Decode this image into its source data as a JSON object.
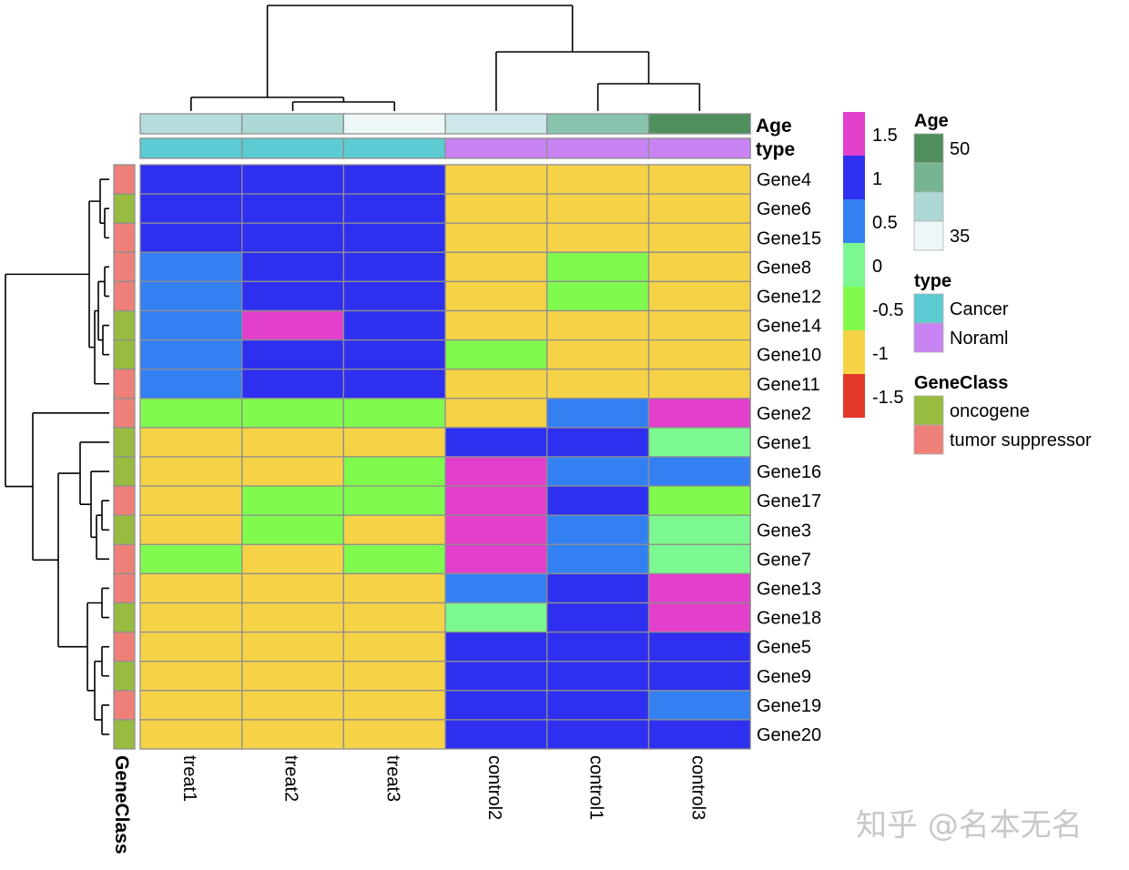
{
  "chart_data": {
    "type": "heatmap",
    "columns": [
      "treat1",
      "treat2",
      "treat3",
      "control2",
      "control1",
      "control3"
    ],
    "rows": [
      "Gene4",
      "Gene6",
      "Gene15",
      "Gene8",
      "Gene12",
      "Gene14",
      "Gene10",
      "Gene11",
      "Gene2",
      "Gene1",
      "Gene16",
      "Gene17",
      "Gene3",
      "Gene7",
      "Gene13",
      "Gene18",
      "Gene5",
      "Gene9",
      "Gene19",
      "Gene20"
    ],
    "values": [
      [
        1,
        1,
        1,
        -1,
        -1,
        -1
      ],
      [
        1,
        1,
        1,
        -1,
        -1,
        -1
      ],
      [
        1,
        1,
        1,
        -1,
        -1,
        -1
      ],
      [
        0.5,
        1,
        1,
        -1,
        -0.5,
        -1
      ],
      [
        0.5,
        1,
        1,
        -1,
        -0.5,
        -1
      ],
      [
        0.5,
        1.5,
        1,
        -1,
        -1,
        -1
      ],
      [
        0.5,
        1,
        1,
        -0.5,
        -1,
        -1
      ],
      [
        0.5,
        1,
        1,
        -1,
        -1,
        -1
      ],
      [
        -0.5,
        -0.5,
        -0.5,
        -1,
        0.5,
        1.5
      ],
      [
        -1,
        -1,
        -1,
        1,
        1,
        0
      ],
      [
        -1,
        -1,
        -0.5,
        1.5,
        0.5,
        0.5
      ],
      [
        -1,
        -0.5,
        -0.5,
        1.5,
        1,
        -0.5
      ],
      [
        -1,
        -0.5,
        -1,
        1.5,
        0.5,
        0
      ],
      [
        -0.5,
        -1,
        -0.5,
        1.5,
        0.5,
        0
      ],
      [
        -1,
        -1,
        -1,
        0.5,
        1,
        1.5
      ],
      [
        -1,
        -1,
        -1,
        0,
        1,
        1.5
      ],
      [
        -1,
        -1,
        -1,
        1,
        1,
        1
      ],
      [
        -1,
        -1,
        -1,
        1,
        1,
        1
      ],
      [
        -1,
        -1,
        -1,
        1,
        1,
        0.5
      ],
      [
        -1,
        -1,
        -1,
        1,
        1,
        1
      ]
    ],
    "color_scale": {
      "breaks": [
        1.5,
        1,
        0.5,
        0,
        -0.5,
        -1,
        -1.5
      ],
      "labels": [
        "1.5",
        "1",
        "0.5",
        "0",
        "-0.5",
        "-1",
        "-1.5"
      ],
      "colors": [
        "#e23fcb",
        "#2f2ff0",
        "#3380f3",
        "#7cf890",
        "#80fb4d",
        "#f6d246",
        "#e23a2a"
      ]
    },
    "column_annotations": {
      "Age": {
        "label": "Age",
        "values": [
          38,
          40,
          35,
          37,
          46,
          50
        ],
        "colors": [
          "#b6dcdc",
          "#acd8d5",
          "#eef7f7",
          "#cde7ea",
          "#88c4ae",
          "#4f8f5c"
        ]
      },
      "type": {
        "label": "type",
        "values": [
          "Cancer",
          "Cancer",
          "Cancer",
          "Noraml",
          "Noraml",
          "Noraml"
        ]
      }
    },
    "row_annotation": {
      "label": "GeneClass",
      "values": [
        "tumor suppressor",
        "oncogene",
        "tumor suppressor",
        "tumor suppressor",
        "tumor suppressor",
        "oncogene",
        "oncogene",
        "tumor suppressor",
        "tumor suppressor",
        "oncogene",
        "oncogene",
        "tumor suppressor",
        "oncogene",
        "tumor suppressor",
        "tumor suppressor",
        "oncogene",
        "tumor suppressor",
        "oncogene",
        "tumor suppressor",
        "oncogene"
      ]
    },
    "legends": {
      "age": {
        "title": "Age",
        "labels": [
          "50",
          "35"
        ],
        "colors": [
          "#4f8f5c",
          "#76b592",
          "#acd8d5",
          "#eef7f7"
        ]
      },
      "type": {
        "title": "type",
        "entries": [
          {
            "label": "Cancer",
            "color": "#5ccbd2"
          },
          {
            "label": "Noraml",
            "color": "#c883f3"
          }
        ]
      },
      "geneclass": {
        "title": "GeneClass",
        "entries": [
          {
            "label": "oncogene",
            "color": "#97bc3f"
          },
          {
            "label": "tumor suppressor",
            "color": "#ee8078"
          }
        ]
      }
    },
    "row_dendrogram_order": "Gene4 Gene6 Gene15 Gene8 Gene12 Gene14 Gene10 Gene11 | Gene2 Gene1 Gene16 Gene17 Gene3 Gene7 | Gene13 Gene18 Gene5 Gene9 Gene19 Gene20",
    "column_dendrogram_order": "treat1 treat2 treat3 | control2 control1 control3"
  },
  "watermark": "知乎 @名本无名",
  "colors": {
    "grid": "#8f8f8f",
    "dendrogram": "#000000"
  }
}
